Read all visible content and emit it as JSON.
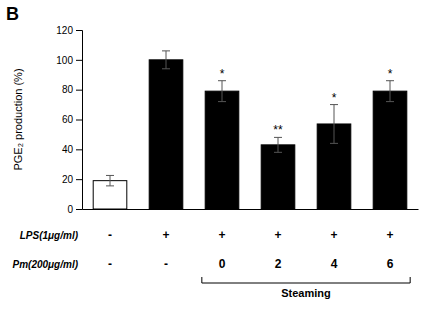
{
  "chart_data": {
    "type": "bar",
    "ylabel": "PGE₂ production (%)",
    "categories": [
      null,
      null,
      null,
      null,
      null,
      null
    ],
    "values": [
      19,
      100,
      79,
      43,
      57,
      79
    ],
    "errors": [
      3.5,
      6,
      7,
      5,
      13,
      7
    ],
    "colors": [
      "white",
      "black",
      "black",
      "black",
      "black",
      "black"
    ],
    "ylim": [
      0,
      120
    ],
    "yticks": [
      0,
      20,
      40,
      60,
      80,
      100,
      120
    ],
    "grid": false,
    "tick_labels": "y",
    "annotations": {
      "panel_label": "B",
      "significance": [
        null,
        null,
        "*",
        "**",
        "*",
        "*"
      ],
      "rows": [
        {
          "label": "LPS(1μg/ml)",
          "values": [
            "-",
            "+",
            "+",
            "+",
            "+",
            "+"
          ]
        },
        {
          "label": "Pm(200μg/ml)",
          "values": [
            "-",
            "-",
            "0",
            "2",
            "4",
            "6"
          ]
        }
      ],
      "bracket": {
        "label": "Steaming",
        "start": 2,
        "end": 5
      }
    }
  }
}
